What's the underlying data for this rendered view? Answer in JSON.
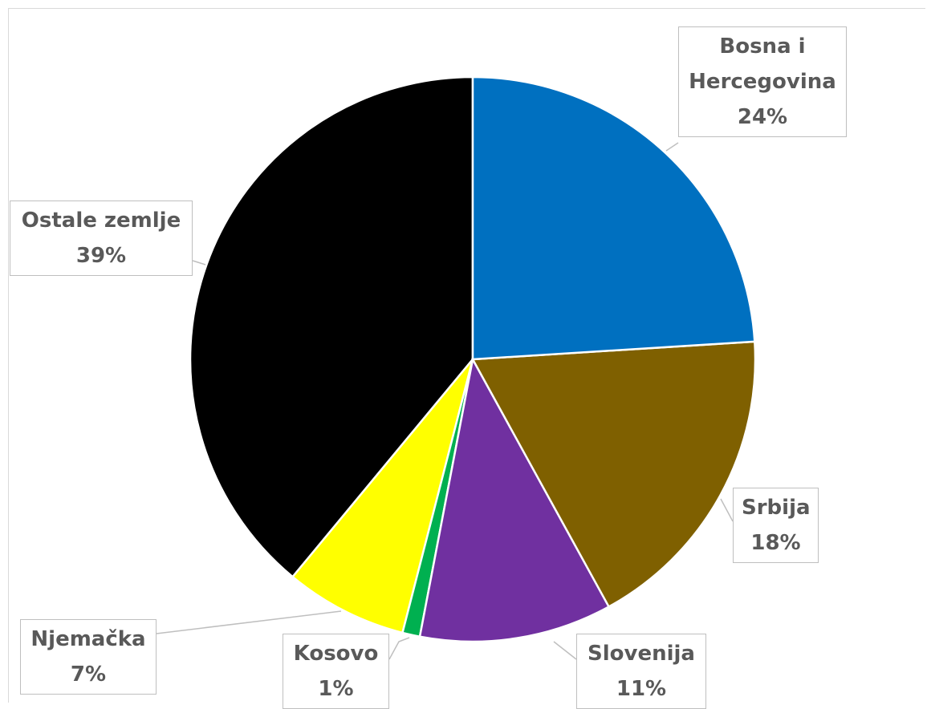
{
  "chart_data": {
    "type": "pie",
    "categories": [
      "Bosna i Hercegovina",
      "Srbija",
      "Slovenija",
      "Kosovo",
      "Njemačka",
      "Ostale zemlje"
    ],
    "values": [
      24,
      18,
      11,
      1,
      7,
      39
    ],
    "value_labels": [
      "24%",
      "18%",
      "11%",
      "1%",
      "7%",
      "39%"
    ],
    "colors": [
      "#0070c0",
      "#7f6000",
      "#7030a0",
      "#00b050",
      "#ffff00",
      "#000000"
    ]
  }
}
